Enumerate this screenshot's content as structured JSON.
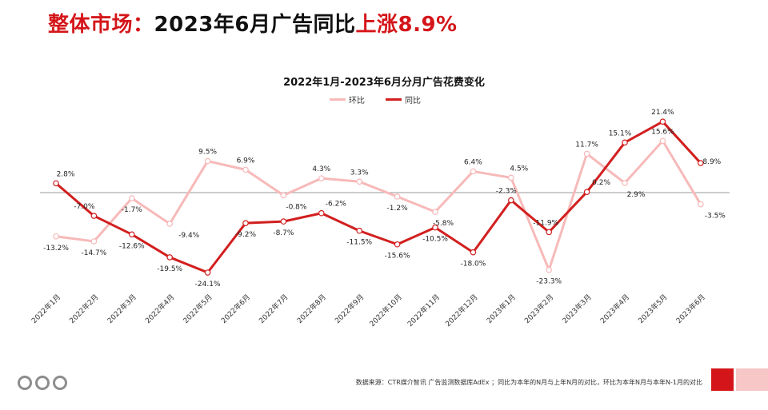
{
  "headline": {
    "prefix": "整体市场：",
    "middle": "2023年6月广告同比",
    "suffix": "上涨8.9%"
  },
  "colors": {
    "headline_red": "#d4161a",
    "mom_series": "#f7b9b9",
    "yoy_series": "#d21f1f",
    "zero_line": "#999999"
  },
  "chart_data": {
    "type": "line",
    "title": "2022年1月-2023年6月分月广告花费变化",
    "categories": [
      "2022年1月",
      "2022年2月",
      "2022年3月",
      "2022年4月",
      "2022年5月",
      "2022年6月",
      "2022年7月",
      "2022年8月",
      "2022年9月",
      "2022年10月",
      "2022年11月",
      "2022年12月",
      "2023年1月",
      "2023年2月",
      "2023年3月",
      "2023年4月",
      "2023年5月",
      "2023年6月"
    ],
    "series": [
      {
        "name": "环比",
        "values": [
          -13.2,
          -14.7,
          -1.7,
          -9.4,
          9.5,
          6.9,
          -0.8,
          4.3,
          3.3,
          -1.2,
          -5.8,
          6.4,
          4.5,
          -23.3,
          11.7,
          2.9,
          15.6,
          -3.5
        ],
        "labels": [
          "-13.2%",
          "-14.7%",
          "-1.7%",
          "-9.4%",
          "9.5%",
          "6.9%",
          "-0.8%",
          "4.3%",
          "3.3%",
          "-1.2%",
          "-5.8%",
          "6.4%",
          "4.5%",
          "-23.3%",
          "11.7%",
          "2.9%",
          "15.6%",
          "-3.5%"
        ]
      },
      {
        "name": "同比",
        "values": [
          2.8,
          -7.0,
          -12.6,
          -19.5,
          -24.1,
          -9.2,
          -8.7,
          -6.2,
          -11.5,
          -15.6,
          -10.5,
          -18.0,
          -2.3,
          -11.9,
          0.2,
          15.1,
          21.4,
          8.9
        ],
        "labels": [
          "2.8%",
          "-7.0%",
          "-12.6%",
          "-19.5%",
          "-24.1%",
          "-9.2%",
          "-8.7%",
          "-6.2%",
          "-11.5%",
          "-15.6%",
          "-10.5%",
          "-18.0%",
          "-2.3%",
          "-11.9%",
          "0.2%",
          "15.1%",
          "21.4%",
          "8.9%"
        ]
      }
    ],
    "legend_position": "top-center",
    "grid": false,
    "ylim": [
      -30,
      25
    ]
  },
  "footer": {
    "source": "数据来源：CTR媒介智讯 广告监测数据库AdEx ；同比为本年的N月与上年N月的对比，环比为本年N月与本年N-1月的对比"
  }
}
